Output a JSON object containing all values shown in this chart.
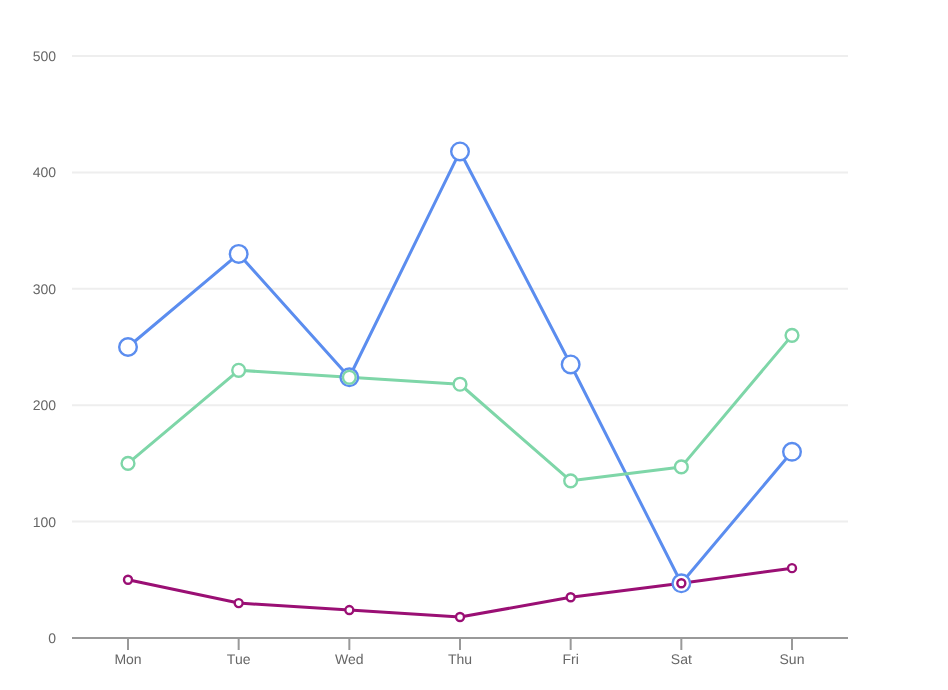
{
  "chart_data": {
    "type": "line",
    "categories": [
      "Mon",
      "Tue",
      "Wed",
      "Thu",
      "Fri",
      "Sat",
      "Sun"
    ],
    "series": [
      {
        "color": "#5b8def",
        "values": [
          250,
          330,
          224,
          418,
          235,
          47,
          160
        ]
      },
      {
        "color": "#7ed6a8",
        "values": [
          150,
          230,
          224,
          218,
          135,
          147,
          260
        ]
      },
      {
        "color": "#9a0f74",
        "values": [
          50,
          30,
          24,
          18,
          35,
          47,
          60
        ]
      }
    ],
    "ylim": [
      0,
      500
    ],
    "yticks": [
      0,
      100,
      200,
      300,
      400,
      500
    ],
    "grid": "y",
    "marker": "circle",
    "line_style": "solid"
  }
}
